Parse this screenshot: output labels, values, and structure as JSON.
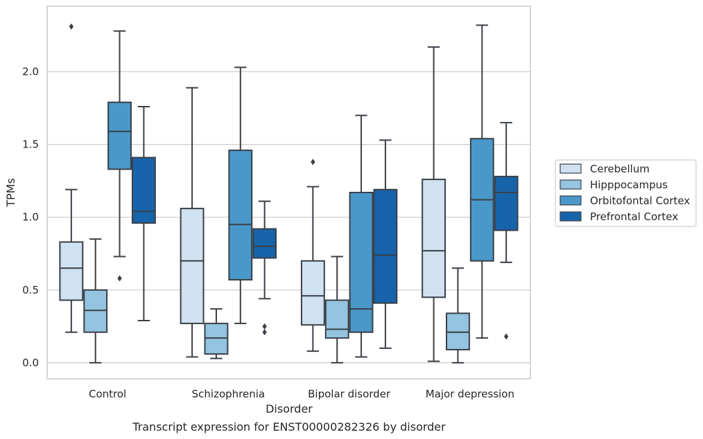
{
  "chart_data": {
    "type": "box",
    "title": "",
    "caption": "Transcript expression for ENST00000282326 by disorder",
    "xlabel": "Disorder",
    "ylabel": "TPMs",
    "ylim": [
      -0.11,
      2.45
    ],
    "yticks": [
      0.0,
      0.5,
      1.0,
      1.5,
      2.0
    ],
    "ytick_labels": [
      "0.0",
      "0.5",
      "1.0",
      "1.5",
      "2.0"
    ],
    "grid": "horizontal",
    "legend_position": "right",
    "categories": [
      "Control",
      "Schizophrenia",
      "Bipolar disorder",
      "Major depression"
    ],
    "series": [
      {
        "name": "Cerebellum",
        "color": "#d0e1f2",
        "boxes": [
          {
            "q1": 0.43,
            "median": 0.65,
            "q3": 0.83,
            "whisker_low": 0.21,
            "whisker_high": 1.19,
            "outliers": [
              2.31
            ]
          },
          {
            "q1": 0.27,
            "median": 0.7,
            "q3": 1.06,
            "whisker_low": 0.04,
            "whisker_high": 1.89,
            "outliers": []
          },
          {
            "q1": 0.26,
            "median": 0.46,
            "q3": 0.7,
            "whisker_low": 0.08,
            "whisker_high": 1.21,
            "outliers": [
              1.38
            ]
          },
          {
            "q1": 0.45,
            "median": 0.77,
            "q3": 1.26,
            "whisker_low": 0.01,
            "whisker_high": 2.17,
            "outliers": []
          }
        ]
      },
      {
        "name": "Hipppocampus",
        "color": "#94c4df",
        "boxes": [
          {
            "q1": 0.21,
            "median": 0.36,
            "q3": 0.5,
            "whisker_low": 0.0,
            "whisker_high": 0.85,
            "outliers": []
          },
          {
            "q1": 0.06,
            "median": 0.17,
            "q3": 0.27,
            "whisker_low": 0.03,
            "whisker_high": 0.37,
            "outliers": []
          },
          {
            "q1": 0.17,
            "median": 0.23,
            "q3": 0.43,
            "whisker_low": 0.0,
            "whisker_high": 0.73,
            "outliers": []
          },
          {
            "q1": 0.09,
            "median": 0.21,
            "q3": 0.34,
            "whisker_low": 0.0,
            "whisker_high": 0.65,
            "outliers": []
          }
        ]
      },
      {
        "name": "Orbitofontal Cortex",
        "color": "#4a98c9",
        "boxes": [
          {
            "q1": 1.33,
            "median": 1.59,
            "q3": 1.79,
            "whisker_low": 0.73,
            "whisker_high": 2.28,
            "outliers": [
              0.58
            ]
          },
          {
            "q1": 0.57,
            "median": 0.95,
            "q3": 1.46,
            "whisker_low": 0.27,
            "whisker_high": 2.03,
            "outliers": []
          },
          {
            "q1": 0.21,
            "median": 0.37,
            "q3": 1.17,
            "whisker_low": 0.04,
            "whisker_high": 1.7,
            "outliers": []
          },
          {
            "q1": 0.7,
            "median": 1.12,
            "q3": 1.54,
            "whisker_low": 0.17,
            "whisker_high": 2.32,
            "outliers": []
          }
        ]
      },
      {
        "name": "Prefrontal Cortex",
        "color": "#1764ab",
        "boxes": [
          {
            "q1": 0.96,
            "median": 1.04,
            "q3": 1.41,
            "whisker_low": 0.29,
            "whisker_high": 1.76,
            "outliers": []
          },
          {
            "q1": 0.72,
            "median": 0.8,
            "q3": 0.92,
            "whisker_low": 0.44,
            "whisker_high": 1.11,
            "outliers": [
              0.25,
              0.21
            ]
          },
          {
            "q1": 0.41,
            "median": 0.74,
            "q3": 1.19,
            "whisker_low": 0.1,
            "whisker_high": 1.53,
            "outliers": []
          },
          {
            "q1": 0.91,
            "median": 1.17,
            "q3": 1.28,
            "whisker_low": 0.69,
            "whisker_high": 1.65,
            "outliers": [
              0.18
            ]
          }
        ]
      }
    ],
    "line_color": "#3a3f46"
  }
}
